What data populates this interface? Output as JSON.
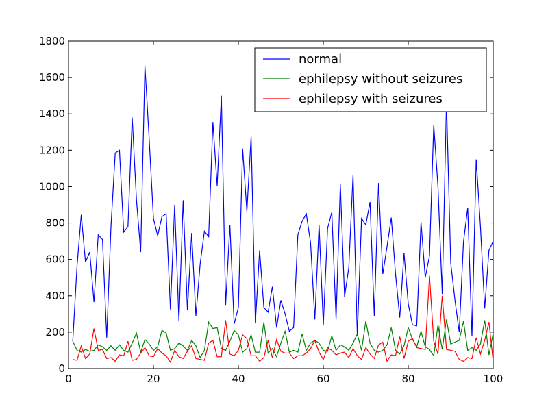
{
  "chart_data": {
    "type": "line",
    "title": "",
    "xlabel": "",
    "ylabel": "",
    "xlim": [
      0,
      100
    ],
    "ylim": [
      0,
      1800
    ],
    "xticks": [
      0,
      20,
      40,
      60,
      80,
      100
    ],
    "yticks": [
      0,
      200,
      400,
      600,
      800,
      1000,
      1200,
      1400,
      1600,
      1800
    ],
    "grid": false,
    "legend_position": "top-right",
    "x": [
      1,
      2,
      3,
      4,
      5,
      6,
      7,
      8,
      9,
      10,
      11,
      12,
      13,
      14,
      15,
      16,
      17,
      18,
      19,
      20,
      21,
      22,
      23,
      24,
      25,
      26,
      27,
      28,
      29,
      30,
      31,
      32,
      33,
      34,
      35,
      36,
      37,
      38,
      39,
      40,
      41,
      42,
      43,
      44,
      45,
      46,
      47,
      48,
      49,
      50,
      51,
      52,
      53,
      54,
      55,
      56,
      57,
      58,
      59,
      60,
      61,
      62,
      63,
      64,
      65,
      66,
      67,
      68,
      69,
      70,
      71,
      72,
      73,
      74,
      75,
      76,
      77,
      78,
      79,
      80,
      81,
      82,
      83,
      84,
      85,
      86,
      87,
      88,
      89,
      90,
      91,
      92,
      93,
      94,
      95,
      96,
      97,
      98,
      99,
      100
    ],
    "series": [
      {
        "name": "normal",
        "color": "#0000ff",
        "values": [
          150,
          560,
          845,
          585,
          640,
          365,
          735,
          710,
          170,
          780,
          1185,
          1200,
          750,
          780,
          1380,
          930,
          640,
          1665,
          1260,
          825,
          730,
          835,
          850,
          325,
          900,
          260,
          925,
          320,
          745,
          290,
          575,
          755,
          725,
          1355,
          1005,
          1500,
          350,
          790,
          245,
          335,
          1210,
          865,
          1275,
          250,
          650,
          335,
          310,
          450,
          225,
          375,
          300,
          205,
          225,
          735,
          810,
          850,
          690,
          270,
          790,
          240,
          770,
          860,
          270,
          1015,
          395,
          555,
          1065,
          180,
          825,
          790,
          915,
          290,
          1020,
          520,
          670,
          830,
          520,
          280,
          635,
          355,
          240,
          235,
          805,
          500,
          620,
          1340,
          1000,
          410,
          1470,
          580,
          375,
          200,
          695,
          885,
          180,
          1150,
          780,
          330,
          650,
          700
        ]
      },
      {
        "name": "ephilepsy without seizures",
        "color": "#008000",
        "values": [
          150,
          100,
          90,
          105,
          95,
          100,
          130,
          120,
          100,
          125,
          100,
          130,
          100,
          90,
          140,
          195,
          90,
          160,
          135,
          100,
          120,
          210,
          195,
          100,
          110,
          140,
          125,
          100,
          155,
          125,
          60,
          100,
          255,
          220,
          225,
          110,
          100,
          150,
          210,
          185,
          90,
          110,
          185,
          90,
          90,
          255,
          85,
          110,
          65,
          140,
          205,
          90,
          100,
          90,
          190,
          100,
          140,
          155,
          140,
          100,
          95,
          180,
          100,
          130,
          120,
          100,
          140,
          190,
          100,
          260,
          140,
          100,
          90,
          100,
          130,
          225,
          100,
          80,
          125,
          225,
          160,
          120,
          205,
          120,
          105,
          70,
          240,
          105,
          270,
          135,
          145,
          155,
          260,
          100,
          115,
          100,
          135,
          265,
          75,
          195
        ]
      },
      {
        "name": "ephilepsy with seizures",
        "color": "#ff0000",
        "values": [
          50,
          45,
          125,
          55,
          80,
          220,
          100,
          105,
          55,
          60,
          40,
          75,
          70,
          150,
          45,
          50,
          85,
          115,
          70,
          65,
          110,
          85,
          70,
          35,
          100,
          65,
          55,
          95,
          125,
          55,
          50,
          45,
          140,
          155,
          65,
          65,
          265,
          80,
          70,
          100,
          185,
          165,
          70,
          70,
          40,
          60,
          155,
          60,
          160,
          95,
          85,
          85,
          55,
          70,
          70,
          85,
          110,
          155,
          90,
          50,
          115,
          100,
          75,
          85,
          90,
          60,
          110,
          70,
          50,
          115,
          80,
          55,
          130,
          145,
          40,
          75,
          70,
          175,
          55,
          150,
          165,
          115,
          110,
          105,
          510,
          150,
          80,
          400,
          105,
          100,
          95,
          50,
          40,
          60,
          55,
          170,
          80,
          155,
          255,
          40
        ]
      }
    ]
  }
}
